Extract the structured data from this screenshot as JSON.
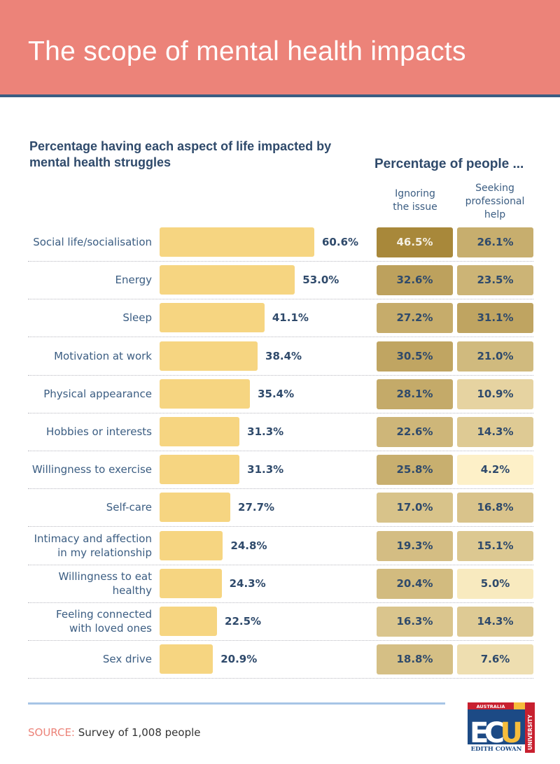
{
  "title": "The scope of mental health impacts",
  "left_title": "Percentage having each aspect of life impacted by mental health struggles",
  "right_title": "Percentage of people ...",
  "colors": {
    "header": "#ec8379",
    "bar": "#f6d581",
    "text": "#2f4a6b",
    "heat_low": "#fdf0c8",
    "heat_high": "#a8883a"
  },
  "chart_data": {
    "type": "bar",
    "orientation": "horizontal",
    "categories": [
      "Social life/socialisation",
      "Energy",
      "Sleep",
      "Motivation at work",
      "Physical appearance",
      "Hobbies or interests",
      "Willingness to exercise",
      "Self-care",
      "Intimacy and affection in my relationship",
      "Willingness to eat healthy",
      "Feeling connected with loved ones",
      "Sex drive"
    ],
    "category_lines": [
      [
        "Social life/socialisation"
      ],
      [
        "Energy"
      ],
      [
        "Sleep"
      ],
      [
        "Motivation at work"
      ],
      [
        "Physical appearance"
      ],
      [
        "Hobbies or interests"
      ],
      [
        "Willingness to exercise"
      ],
      [
        "Self-care"
      ],
      [
        "Intimacy and affection",
        "in my relationship"
      ],
      [
        "Willingness to eat",
        "healthy"
      ],
      [
        "Feeling connected",
        "with loved ones"
      ],
      [
        "Sex drive"
      ]
    ],
    "values": [
      60.6,
      53.0,
      41.1,
      38.4,
      35.4,
      31.3,
      31.3,
      27.7,
      24.8,
      24.3,
      22.5,
      20.9
    ],
    "value_labels": [
      "60.6%",
      "53.0%",
      "41.1%",
      "38.4%",
      "35.4%",
      "31.3%",
      "31.3%",
      "27.7%",
      "24.8%",
      "24.3%",
      "22.5%",
      "20.9%"
    ],
    "heatmap": {
      "type": "heatmap",
      "columns": [
        "Ignoring the issue",
        "Seeking professional help"
      ],
      "column_lines": [
        [
          "Ignoring",
          "the issue"
        ],
        [
          "Seeking",
          "professional",
          "help"
        ]
      ],
      "values": [
        [
          46.5,
          26.1
        ],
        [
          32.6,
          23.5
        ],
        [
          27.2,
          31.1
        ],
        [
          30.5,
          21.0
        ],
        [
          28.1,
          10.9
        ],
        [
          22.6,
          14.3
        ],
        [
          25.8,
          4.2
        ],
        [
          17.0,
          16.8
        ],
        [
          19.3,
          15.1
        ],
        [
          20.4,
          5.0
        ],
        [
          16.3,
          14.3
        ],
        [
          18.8,
          7.6
        ]
      ],
      "labels": [
        [
          "46.5%",
          "26.1%"
        ],
        [
          "32.6%",
          "23.5%"
        ],
        [
          "27.2%",
          "31.1%"
        ],
        [
          "30.5%",
          "21.0%"
        ],
        [
          "28.1%",
          "10.9%"
        ],
        [
          "22.6%",
          "14.3%"
        ],
        [
          "25.8%",
          "4.2%"
        ],
        [
          "17.0%",
          "16.8%"
        ],
        [
          "19.3%",
          "15.1%"
        ],
        [
          "20.4%",
          "5.0%"
        ],
        [
          "16.3%",
          "14.3%"
        ],
        [
          "18.8%",
          "7.6%"
        ]
      ]
    }
  },
  "source": {
    "key": "SOURCE:",
    "text": "Survey of 1,008 people"
  },
  "logo": {
    "top": "AUSTRALIA",
    "main": "ECU",
    "bottom": "EDITH COWAN",
    "side": "UNIVERSITY"
  }
}
